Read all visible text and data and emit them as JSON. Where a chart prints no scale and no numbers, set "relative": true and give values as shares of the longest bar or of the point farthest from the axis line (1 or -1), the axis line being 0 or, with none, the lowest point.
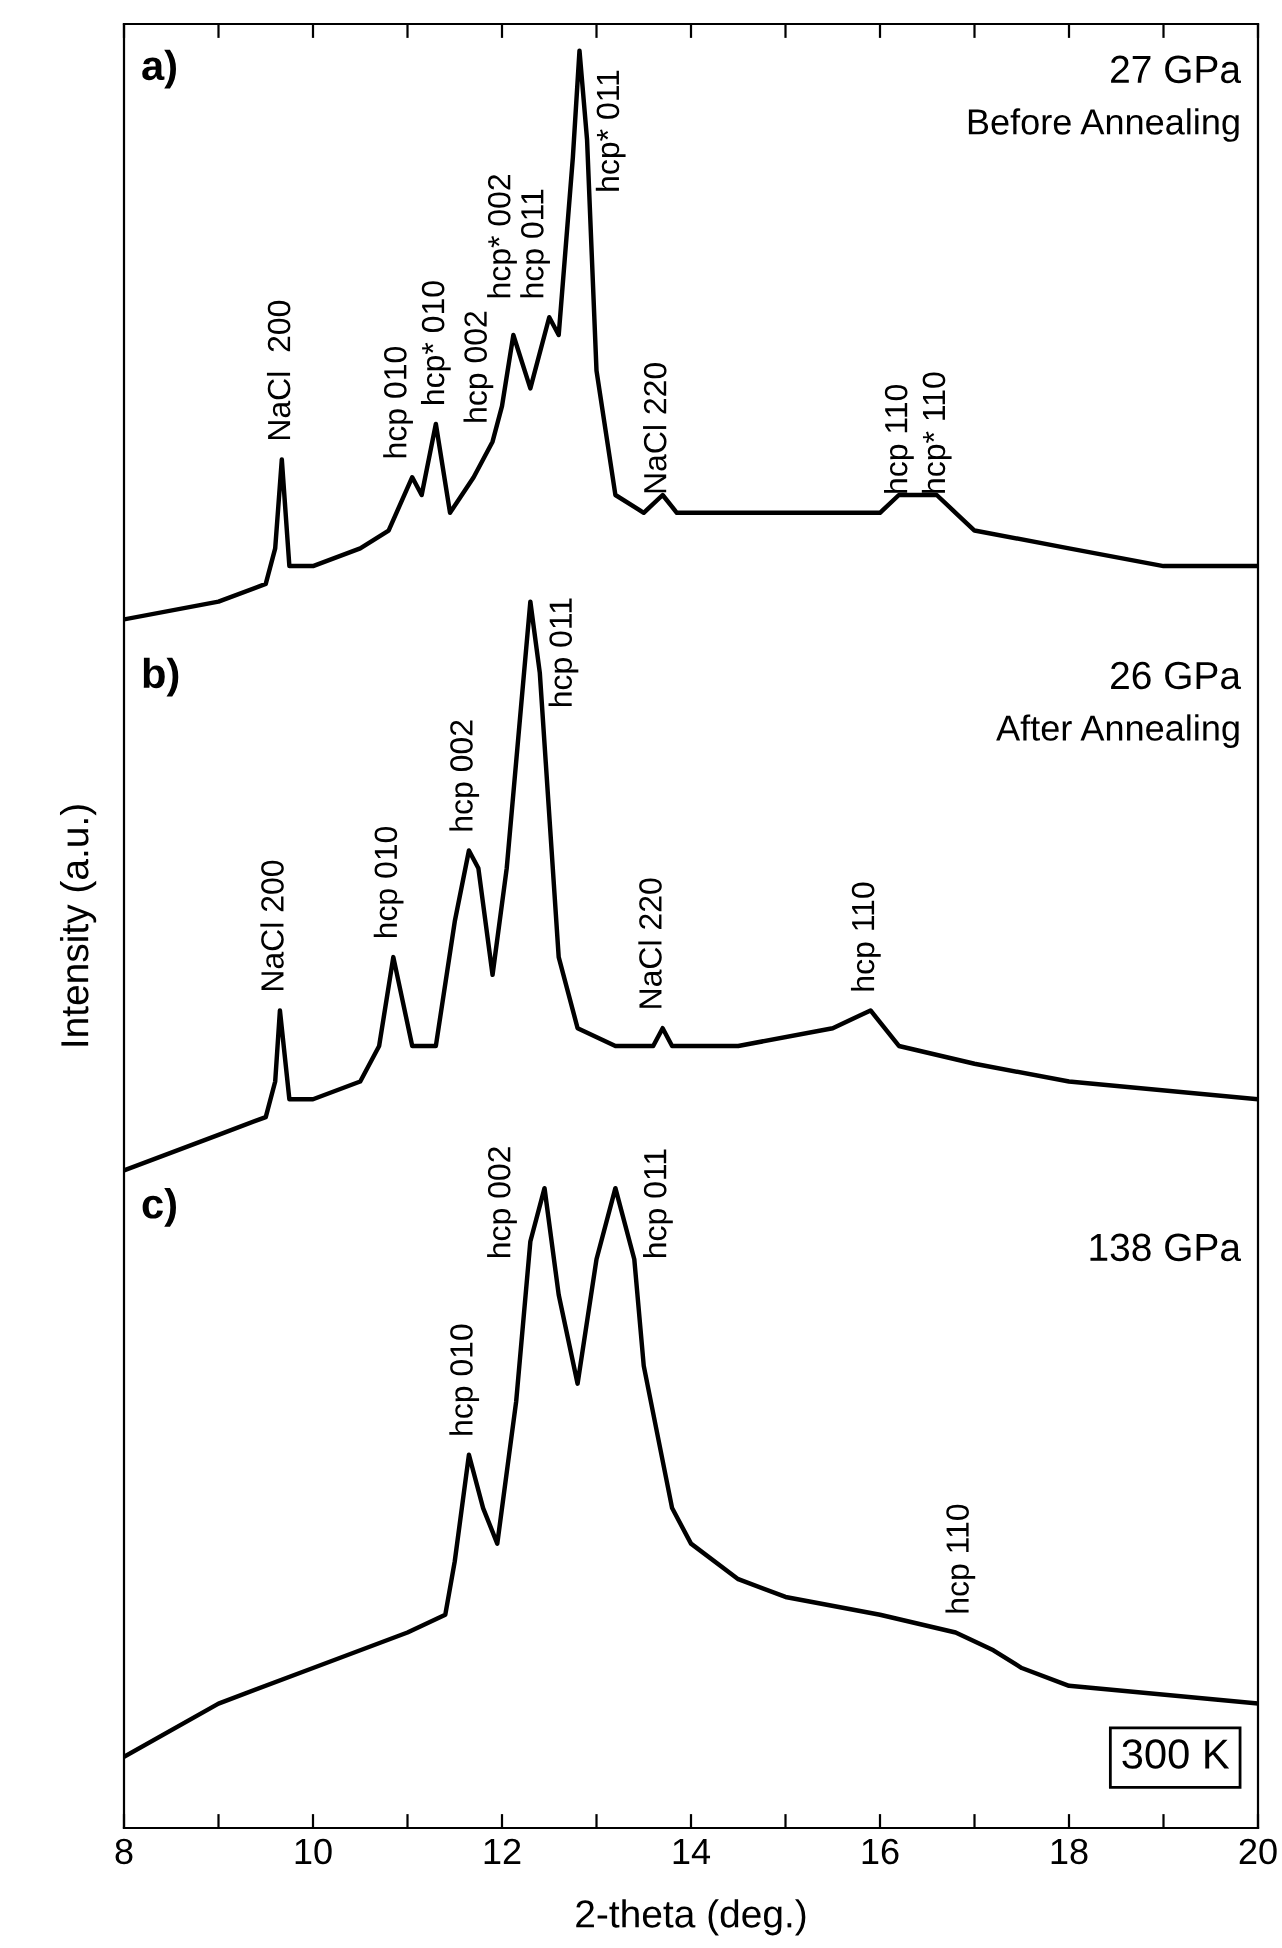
{
  "chart_data": {
    "type": "line",
    "relative": true,
    "xlabel": "2-theta (deg.)",
    "ylabel": "Intensity (a.u.)",
    "xlim": [
      8,
      20
    ],
    "xticks": [
      8,
      {
        "value": 9,
        "label": null
      },
      10,
      {
        "value": 11,
        "label": null
      },
      12,
      {
        "value": 13,
        "label": null
      },
      14,
      {
        "value": 15,
        "label": null
      },
      16,
      {
        "value": 17,
        "label": null
      },
      18,
      {
        "value": 19,
        "label": null
      },
      20
    ],
    "series": [
      {
        "color": "#000000",
        "x": [
          8.0,
          9.0,
          9.5,
          9.6,
          9.67,
          9.75,
          10.0,
          10.5,
          10.8,
          11.05,
          11.15,
          11.3,
          11.45,
          11.7,
          11.9,
          12.0,
          12.12,
          12.3,
          12.5,
          12.6,
          12.75,
          12.82,
          12.9,
          13.0,
          13.2,
          13.5,
          13.7,
          13.85,
          14.5,
          15.5,
          16.0,
          16.2,
          16.4,
          16.6,
          16.8,
          17.0,
          18.0,
          19.0,
          20.0
        ],
        "values": [
          0.68,
          0.69,
          0.7,
          0.72,
          0.77,
          0.71,
          0.71,
          0.72,
          0.73,
          0.76,
          0.75,
          0.79,
          0.74,
          0.76,
          0.78,
          0.8,
          0.84,
          0.81,
          0.85,
          0.84,
          0.94,
          1.0,
          0.95,
          0.82,
          0.75,
          0.74,
          0.75,
          0.74,
          0.74,
          0.74,
          0.74,
          0.75,
          0.75,
          0.75,
          0.74,
          0.73,
          0.72,
          0.71,
          0.71
        ]
      },
      {
        "color": "#000000",
        "x": [
          8.0,
          9.0,
          9.5,
          9.6,
          9.65,
          9.75,
          10.0,
          10.5,
          10.7,
          10.85,
          11.05,
          11.3,
          11.5,
          11.65,
          11.75,
          11.9,
          12.05,
          12.2,
          12.3,
          12.4,
          12.6,
          12.8,
          13.2,
          13.6,
          13.7,
          13.8,
          14.5,
          15.5,
          15.9,
          16.2,
          17.0,
          18.0,
          20.0
        ],
        "values": [
          0.37,
          0.39,
          0.4,
          0.42,
          0.46,
          0.41,
          0.41,
          0.42,
          0.44,
          0.49,
          0.44,
          0.44,
          0.51,
          0.55,
          0.54,
          0.48,
          0.54,
          0.63,
          0.69,
          0.65,
          0.49,
          0.45,
          0.44,
          0.44,
          0.45,
          0.44,
          0.44,
          0.45,
          0.46,
          0.44,
          0.43,
          0.42,
          0.41
        ]
      },
      {
        "color": "#000000",
        "x": [
          8.0,
          9.0,
          10.0,
          11.0,
          11.4,
          11.5,
          11.65,
          11.8,
          11.95,
          12.15,
          12.3,
          12.45,
          12.6,
          12.8,
          13.0,
          13.2,
          13.4,
          13.5,
          13.8,
          14.0,
          14.5,
          15.0,
          16.0,
          16.8,
          17.2,
          17.5,
          18.0,
          20.0
        ],
        "values": [
          0.04,
          0.07,
          0.09,
          0.11,
          0.12,
          0.15,
          0.21,
          0.18,
          0.16,
          0.24,
          0.33,
          0.36,
          0.3,
          0.25,
          0.32,
          0.36,
          0.32,
          0.26,
          0.18,
          0.16,
          0.14,
          0.13,
          0.12,
          0.11,
          0.1,
          0.09,
          0.08,
          0.07
        ]
      }
    ],
    "annotations": [
      "NaCl  200",
      "hcp 010",
      "hcp* 010",
      "hcp 002",
      "hcp* 002",
      "hcp 011",
      "hcp* 011",
      "NaCl 220",
      "hcp 110",
      "hcp* 110",
      "NaCl 200",
      "hcp 010",
      "hcp 002",
      "hcp 011",
      "NaCl 220",
      "hcp 110",
      "hcp 010",
      "hcp 002",
      "hcp 011",
      "hcp 110",
      "a)",
      "27 GPa",
      "Before Annealing",
      "b)",
      "26 GPa",
      "After Annealing",
      "c)",
      "138 GPa",
      "300 K"
    ]
  }
}
